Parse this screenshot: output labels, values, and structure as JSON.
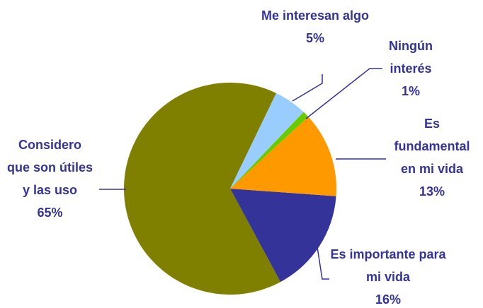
{
  "chart_data": {
    "type": "pie",
    "categories": [
      "Me interesan algo",
      "Ningún interés",
      "Es fundamental en mi vida",
      "Es importante para mi vida",
      "Considero que son útiles y las uso"
    ],
    "values": [
      5,
      1,
      13,
      16,
      65
    ],
    "value_labels": [
      "5%",
      "1%",
      "13%",
      "16%",
      "65%"
    ],
    "colors": [
      "#99ccff",
      "#66cc00",
      "#ff9900",
      "#333399",
      "#808000"
    ]
  }
}
